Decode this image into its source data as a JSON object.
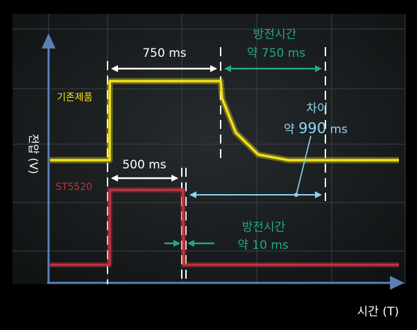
{
  "chart_data": {
    "type": "line",
    "xlabel": "시간 (T)",
    "ylabel": "전압 (V)",
    "series": [
      {
        "name": "기존제품",
        "color": "#f2e21a",
        "points": [
          [
            0,
            0
          ],
          [
            14,
            0
          ],
          [
            15,
            1
          ],
          [
            750,
            1
          ],
          [
            760,
            0.78
          ],
          [
            850,
            0.35
          ],
          [
            1000,
            0.07
          ],
          [
            1200,
            0
          ],
          [
            2000,
            0
          ]
        ]
      },
      {
        "name": "ST5520",
        "color": "#c4313b",
        "points": [
          [
            0,
            0
          ],
          [
            14,
            0
          ],
          [
            15,
            1
          ],
          [
            500,
            1
          ],
          [
            505,
            0
          ],
          [
            2000,
            0
          ]
        ]
      }
    ],
    "annotations": {
      "top_width": {
        "label": "750 ms"
      },
      "top_discharge": {
        "line1": "방전시간",
        "line2": "약 750 ms"
      },
      "difference": {
        "line1": "차이",
        "prefix": "약 ",
        "value": "990",
        "unit": " ms"
      },
      "bottom_width": {
        "label": "500 ms"
      },
      "bottom_discharge": {
        "line1": "방전시간",
        "line2": "약 10 ms"
      }
    },
    "colors": {
      "accent_teal": "#22a882",
      "arrow_light": "#8fd3f2",
      "white": "#ffffff"
    }
  }
}
